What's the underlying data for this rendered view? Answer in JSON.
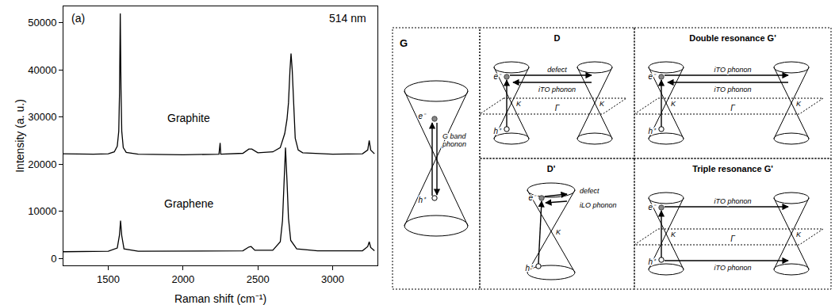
{
  "chart_data": {
    "type": "line",
    "panel_label": "(a)",
    "annotations": [
      "514 nm"
    ],
    "xlabel": "Raman shift (cm⁻¹)",
    "ylabel": "Intensity (a. u.)",
    "xlim": [
      1200,
      3300
    ],
    "xticks": [
      1500,
      2000,
      2500,
      3000
    ],
    "ylim": [
      -1500,
      53500
    ],
    "yticks": [
      0,
      10000,
      20000,
      30000,
      40000,
      50000
    ],
    "grid": false,
    "series": [
      {
        "name": "Graphite",
        "color": "#000000",
        "x": [
          1200,
          1400,
          1500,
          1540,
          1560,
          1570,
          1575,
          1580,
          1585,
          1590,
          1600,
          1620,
          1700,
          2000,
          2240,
          2248,
          2252,
          2400,
          2440,
          2460,
          2500,
          2600,
          2650,
          2680,
          2695,
          2705,
          2715,
          2722,
          2730,
          2740,
          2750,
          2770,
          2800,
          3000,
          3200,
          3235,
          3245,
          3255,
          3280
        ],
        "values": [
          22200,
          22100,
          22200,
          22600,
          23800,
          27000,
          35000,
          52000,
          36000,
          27000,
          23500,
          22500,
          22100,
          22000,
          22100,
          24500,
          22100,
          22300,
          23200,
          23200,
          22400,
          22600,
          23500,
          26500,
          29500,
          33000,
          40000,
          43500,
          40000,
          31000,
          25500,
          23000,
          22400,
          22100,
          22200,
          23000,
          25000,
          23000,
          22200
        ]
      },
      {
        "name": "Graphene",
        "color": "#000000",
        "x": [
          1200,
          1500,
          1560,
          1575,
          1582,
          1590,
          1605,
          1700,
          2400,
          2440,
          2455,
          2480,
          2600,
          2650,
          2665,
          2675,
          2685,
          2695,
          2705,
          2720,
          2760,
          2900,
          3200,
          3235,
          3245,
          3255,
          3280
        ],
        "values": [
          1400,
          1500,
          2200,
          5000,
          8000,
          4800,
          2000,
          1500,
          1600,
          2400,
          2500,
          1700,
          1700,
          3500,
          8000,
          16000,
          23500,
          16500,
          8500,
          3800,
          2000,
          1600,
          1600,
          2500,
          3500,
          2300,
          1600
        ]
      }
    ]
  },
  "diagram": {
    "panels": [
      {
        "title": "G",
        "electron": "e⁻",
        "hole": "h⁺",
        "phonon": "G band phonon"
      },
      {
        "title": "D",
        "electron": "e⁻",
        "hole": "h⁺",
        "upper": "defect",
        "lower": "iTO phonon",
        "valleys": [
          "K",
          "K"
        ],
        "center": "Γ"
      },
      {
        "title": "Double resonance G'",
        "electron": "e⁻",
        "hole": "h⁺",
        "upper": "iTO phonon",
        "lower": "iTO phonon",
        "valleys": [
          "K",
          "K"
        ],
        "center": "Γ"
      },
      {
        "title": "D'",
        "electron": "e⁻",
        "hole": "h⁺",
        "upper": "defect",
        "lower": "iLO phonon",
        "valleys": [
          "K"
        ]
      },
      {
        "title": "Triple resonance G'",
        "electron": "e⁻",
        "hole": "h⁺",
        "upper": "iTO phonon",
        "lower": "iTO phonon",
        "valleys": [
          "K",
          "K"
        ],
        "center": "Γ"
      }
    ]
  }
}
